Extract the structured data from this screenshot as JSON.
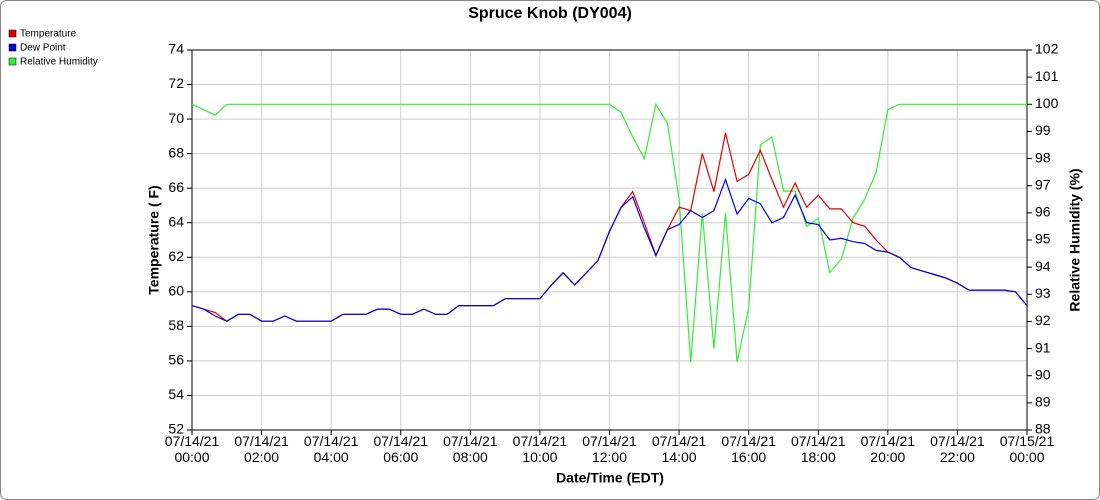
{
  "chart_data": {
    "type": "line",
    "title": "Spruce Knob (DY004)",
    "xlabel": "Date/Time (EDT)",
    "ylabel": "Temperature ( F)",
    "y2label": "Relative Humidity (%)",
    "x": [
      "07/14/21 00:00",
      "07/14/21 00:20",
      "07/14/21 00:40",
      "07/14/21 01:00",
      "07/14/21 01:20",
      "07/14/21 01:40",
      "07/14/21 02:00",
      "07/14/21 02:20",
      "07/14/21 02:40",
      "07/14/21 03:00",
      "07/14/21 03:20",
      "07/14/21 03:40",
      "07/14/21 04:00",
      "07/14/21 04:20",
      "07/14/21 04:40",
      "07/14/21 05:00",
      "07/14/21 05:20",
      "07/14/21 05:40",
      "07/14/21 06:00",
      "07/14/21 06:20",
      "07/14/21 06:40",
      "07/14/21 07:00",
      "07/14/21 07:20",
      "07/14/21 07:40",
      "07/14/21 08:00",
      "07/14/21 08:20",
      "07/14/21 08:40",
      "07/14/21 09:00",
      "07/14/21 09:20",
      "07/14/21 09:40",
      "07/14/21 10:00",
      "07/14/21 10:20",
      "07/14/21 10:40",
      "07/14/21 11:00",
      "07/14/21 11:20",
      "07/14/21 11:40",
      "07/14/21 12:00",
      "07/14/21 12:20",
      "07/14/21 12:40",
      "07/14/21 13:00",
      "07/14/21 13:20",
      "07/14/21 13:40",
      "07/14/21 14:00",
      "07/14/21 14:20",
      "07/14/21 14:40",
      "07/14/21 15:00",
      "07/14/21 15:20",
      "07/14/21 15:40",
      "07/14/21 16:00",
      "07/14/21 16:20",
      "07/14/21 16:40",
      "07/14/21 17:00",
      "07/14/21 17:20",
      "07/14/21 17:40",
      "07/14/21 18:00",
      "07/14/21 18:20",
      "07/14/21 18:40",
      "07/14/21 19:00",
      "07/14/21 19:20",
      "07/14/21 19:40",
      "07/14/21 20:00",
      "07/14/21 20:20",
      "07/14/21 20:40",
      "07/14/21 21:00",
      "07/14/21 21:20",
      "07/14/21 21:40",
      "07/14/21 22:00",
      "07/14/21 22:20",
      "07/14/21 22:40",
      "07/14/21 23:00",
      "07/14/21 23:20",
      "07/14/21 23:40",
      "07/15/21 00:00"
    ],
    "series": [
      {
        "name": "Temperature",
        "color": "#e00000",
        "values": [
          59.2,
          59.0,
          58.8,
          58.3,
          58.7,
          58.7,
          58.3,
          58.3,
          58.6,
          58.3,
          58.3,
          58.3,
          58.3,
          58.7,
          58.7,
          58.7,
          59.0,
          59.0,
          58.7,
          58.7,
          59.0,
          58.7,
          58.7,
          59.2,
          59.2,
          59.2,
          59.2,
          59.6,
          59.6,
          59.6,
          59.6,
          60.4,
          61.1,
          60.4,
          61.1,
          61.8,
          63.5,
          64.9,
          65.8,
          64.0,
          62.1,
          63.6,
          64.9,
          64.7,
          68.0,
          65.8,
          69.2,
          66.4,
          66.8,
          68.2,
          66.5,
          64.9,
          66.3,
          64.9,
          65.6,
          64.8,
          64.8,
          64.0,
          63.8,
          63.0,
          62.3,
          62.0,
          61.4,
          61.2,
          61.0,
          60.8,
          60.5,
          60.1,
          60.1,
          60.1,
          60.1,
          60.0,
          59.2
        ]
      },
      {
        "name": "Dew Point",
        "color": "#0000e0",
        "values": [
          59.2,
          59.0,
          58.6,
          58.3,
          58.7,
          58.7,
          58.3,
          58.3,
          58.6,
          58.3,
          58.3,
          58.3,
          58.3,
          58.7,
          58.7,
          58.7,
          59.0,
          59.0,
          58.7,
          58.7,
          59.0,
          58.7,
          58.7,
          59.2,
          59.2,
          59.2,
          59.2,
          59.6,
          59.6,
          59.6,
          59.6,
          60.4,
          61.1,
          60.4,
          61.1,
          61.8,
          63.5,
          64.9,
          65.5,
          63.7,
          62.1,
          63.6,
          63.9,
          64.7,
          64.3,
          64.7,
          66.5,
          64.5,
          65.4,
          65.1,
          64.0,
          64.3,
          65.6,
          64.0,
          63.9,
          63.0,
          63.1,
          62.9,
          62.8,
          62.4,
          62.3,
          62.0,
          61.4,
          61.2,
          61.0,
          60.8,
          60.5,
          60.1,
          60.1,
          60.1,
          60.1,
          60.0,
          59.2
        ]
      },
      {
        "name": "Relative Humidity",
        "color": "#33ee33",
        "axis": "y2",
        "values": [
          100,
          99.8,
          99.6,
          100,
          100,
          100,
          100,
          100,
          100,
          100,
          100,
          100,
          100,
          100,
          100,
          100,
          100,
          100,
          100,
          100,
          100,
          100,
          100,
          100,
          100,
          100,
          100,
          100,
          100,
          100,
          100,
          100,
          100,
          100,
          100,
          100,
          100,
          99.7,
          98.8,
          98.0,
          100,
          99.3,
          96.5,
          90.5,
          96.0,
          91.0,
          96.0,
          90.5,
          92.5,
          98.5,
          98.8,
          96.8,
          96.8,
          95.5,
          95.8,
          93.8,
          94.3,
          95.8,
          96.5,
          97.5,
          99.8,
          100,
          100,
          100,
          100,
          100,
          100,
          100,
          100,
          100,
          100,
          100,
          100
        ]
      }
    ],
    "xlim": [
      "07/14/21 00:00",
      "07/15/21 00:00"
    ],
    "xticks": [
      "07/14/21 00:00",
      "07/14/21 02:00",
      "07/14/21 04:00",
      "07/14/21 06:00",
      "07/14/21 08:00",
      "07/14/21 10:00",
      "07/14/21 12:00",
      "07/14/21 14:00",
      "07/14/21 16:00",
      "07/14/21 18:00",
      "07/14/21 20:00",
      "07/14/21 22:00",
      "07/15/21 00:00"
    ],
    "ylim": [
      52,
      74
    ],
    "yticks": [
      52,
      54,
      56,
      58,
      60,
      62,
      64,
      66,
      68,
      70,
      72,
      74
    ],
    "y2lim": [
      88,
      102
    ],
    "y2ticks": [
      88,
      89,
      90,
      91,
      92,
      93,
      94,
      95,
      96,
      97,
      98,
      99,
      100,
      101,
      102
    ],
    "grid": true,
    "legend": "top-left"
  }
}
